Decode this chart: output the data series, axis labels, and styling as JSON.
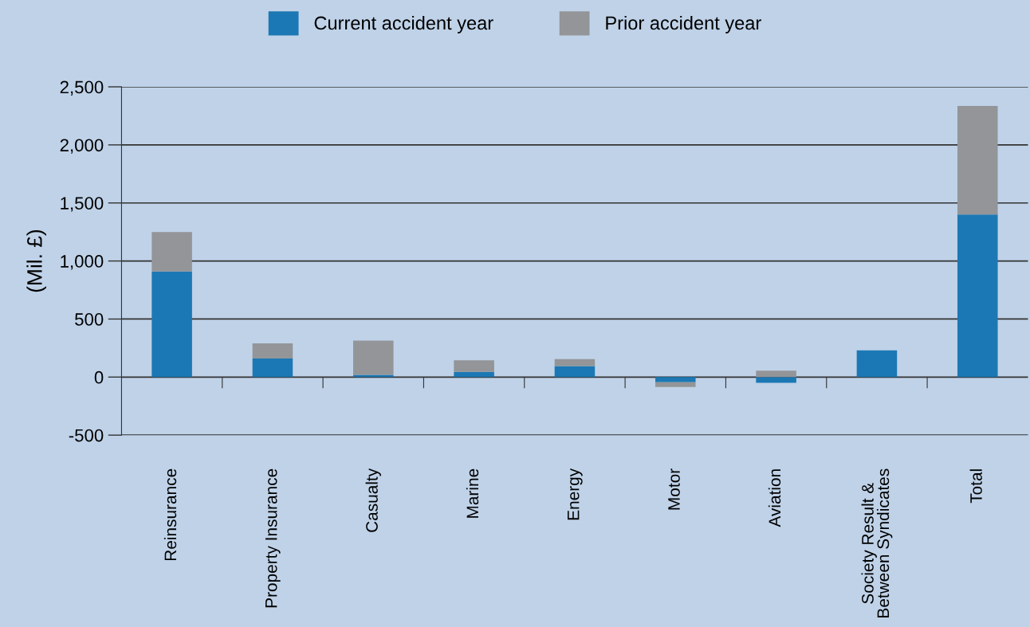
{
  "chart_data": {
    "type": "bar",
    "stacked": true,
    "ylabel": "(Mil. £)",
    "categories": [
      "Reinsurance",
      "Property Insurance",
      "Casualty",
      "Marine",
      "Energy",
      "Motor",
      "Aviation",
      "Society Result &\nBetween Syndicates",
      "Total"
    ],
    "series": [
      {
        "name": "Current accident year",
        "color": "#1c78b4",
        "values": [
          910,
          160,
          20,
          45,
          95,
          -45,
          -50,
          230,
          1400
        ]
      },
      {
        "name": "Prior accident year",
        "color": "#939598",
        "values": [
          340,
          130,
          295,
          100,
          60,
          -40,
          55,
          0,
          935
        ]
      }
    ],
    "ylim": [
      -500,
      2500
    ],
    "yticks": [
      {
        "value": -500,
        "label": "-500"
      },
      0,
      500,
      {
        "value": 1000,
        "label": "1,000"
      },
      {
        "value": 1500,
        "label": "1,500"
      },
      {
        "value": 2000,
        "label": "2,000"
      },
      {
        "value": 2500,
        "label": "2,500"
      }
    ],
    "grid": "y",
    "legend": "top"
  }
}
